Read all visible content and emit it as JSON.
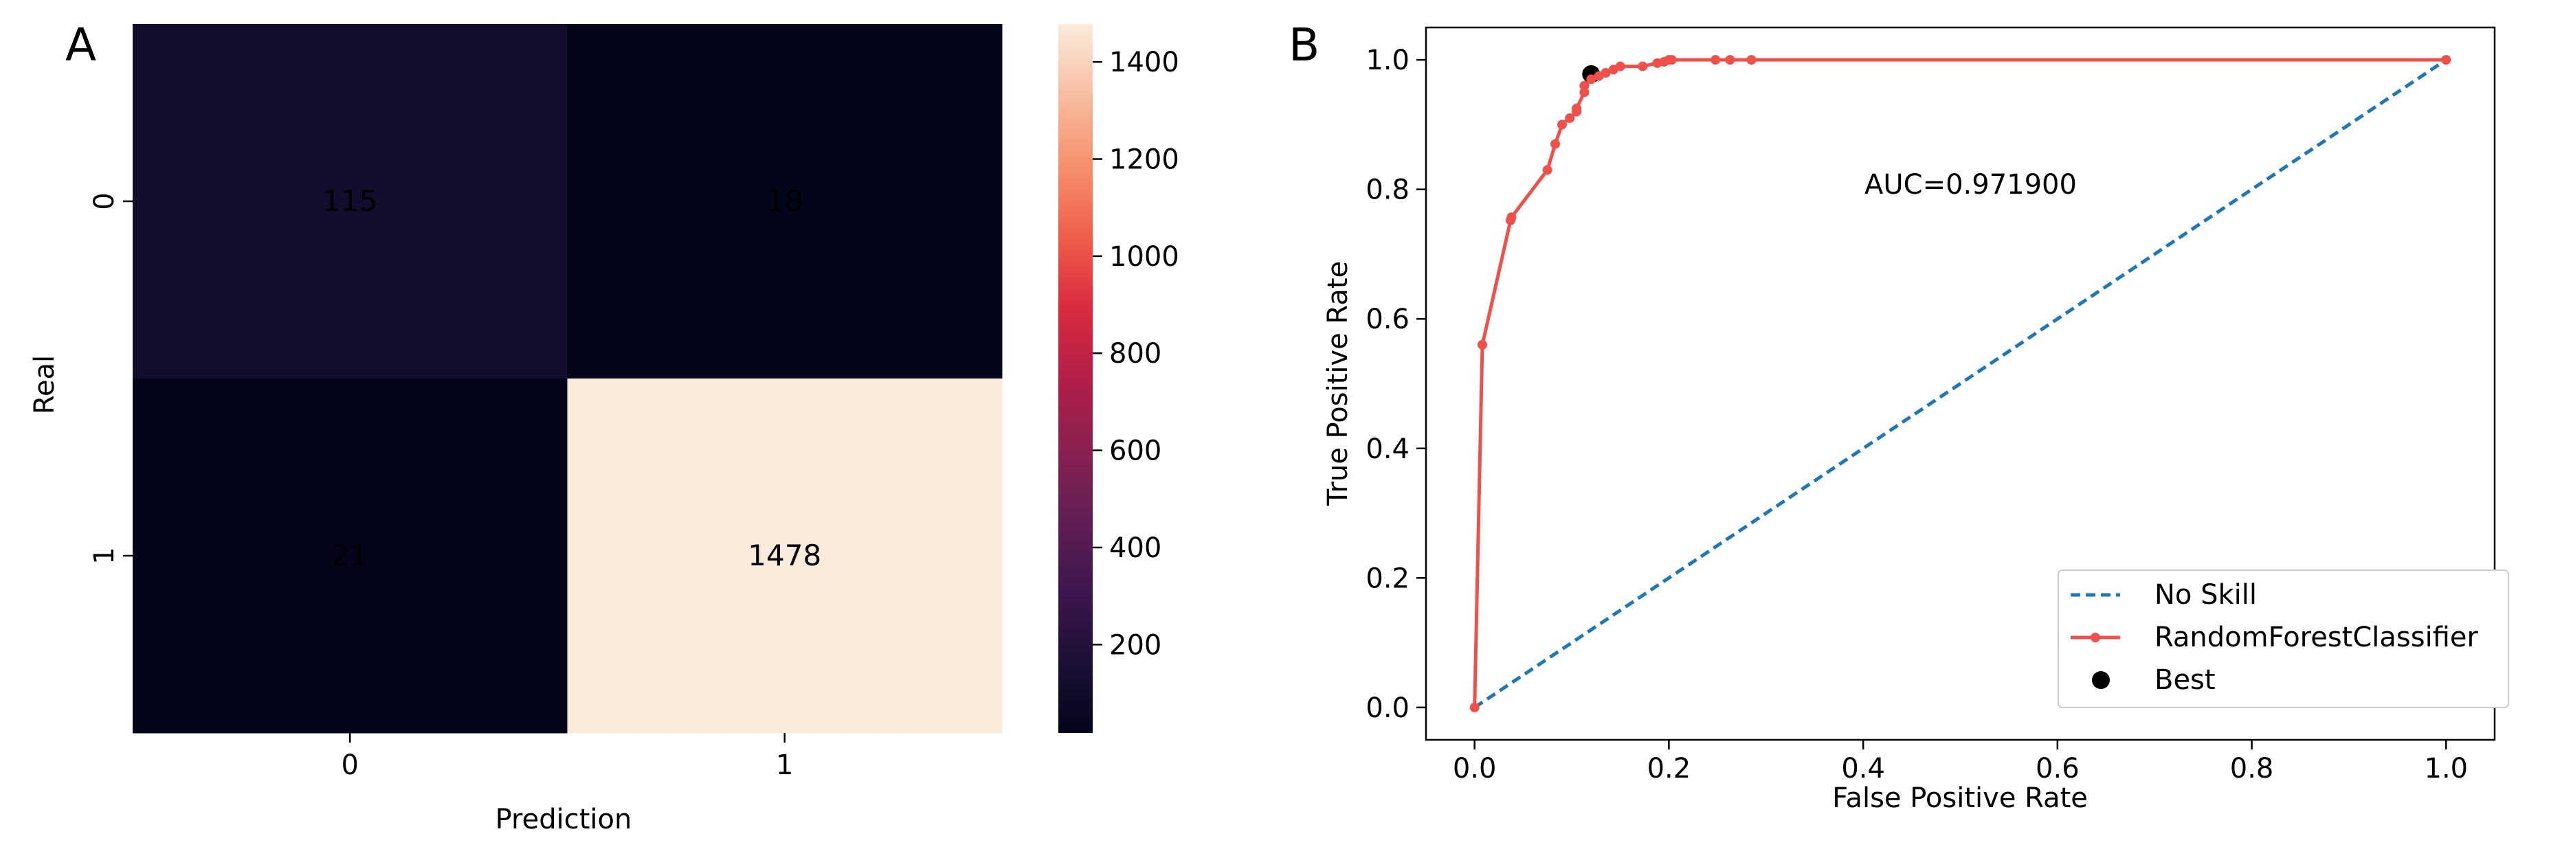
{
  "chart_data": [
    {
      "panel": "A",
      "type": "heatmap",
      "title": "",
      "xlabel": "Prediction",
      "ylabel": "Real",
      "x_categories": [
        "0",
        "1"
      ],
      "y_categories": [
        "0",
        "1"
      ],
      "matrix": [
        [
          115,
          18
        ],
        [
          21,
          1478
        ]
      ],
      "colorbar": {
        "vmin": 18,
        "vmax": 1478,
        "ticks": [
          200,
          400,
          600,
          800,
          1000,
          1200,
          1400
        ]
      },
      "colormap": "rocket"
    },
    {
      "panel": "B",
      "type": "line",
      "title": "",
      "xlabel": "False Positive Rate",
      "ylabel": "True Positive Rate",
      "xlim": [
        -0.05,
        1.05
      ],
      "ylim": [
        -0.05,
        1.05
      ],
      "xticks": [
        0.0,
        0.2,
        0.4,
        0.6,
        0.8,
        1.0
      ],
      "yticks": [
        0.0,
        0.2,
        0.4,
        0.6,
        0.8,
        1.0
      ],
      "annotation": "AUC=0.971900",
      "legend_position": "bottom-right",
      "series": [
        {
          "name": "No Skill",
          "style": "dashed",
          "color": "#1f77b4",
          "x": [
            0,
            1
          ],
          "y": [
            0,
            1
          ]
        },
        {
          "name": "RandomForestClassifier",
          "style": "solid-marker",
          "color": "#f0504a",
          "x": [
            0.0,
            0.008,
            0.037,
            0.038,
            0.075,
            0.083,
            0.09,
            0.098,
            0.105,
            0.105,
            0.113,
            0.113,
            0.12,
            0.128,
            0.135,
            0.143,
            0.15,
            0.173,
            0.188,
            0.195,
            0.2,
            0.203,
            0.248,
            0.263,
            0.285,
            1.0
          ],
          "y": [
            0.0,
            0.56,
            0.752,
            0.757,
            0.83,
            0.87,
            0.9,
            0.91,
            0.92,
            0.925,
            0.95,
            0.96,
            0.97,
            0.975,
            0.98,
            0.985,
            0.99,
            0.99,
            0.995,
            0.997,
            1.0,
            1.0,
            1.0,
            1.0,
            1.0,
            1.0
          ]
        },
        {
          "name": "Best",
          "style": "marker",
          "color": "#000000",
          "x": [
            0.12
          ],
          "y": [
            0.978
          ]
        }
      ]
    }
  ],
  "panels": {
    "a_label": "A",
    "b_label": "B"
  }
}
